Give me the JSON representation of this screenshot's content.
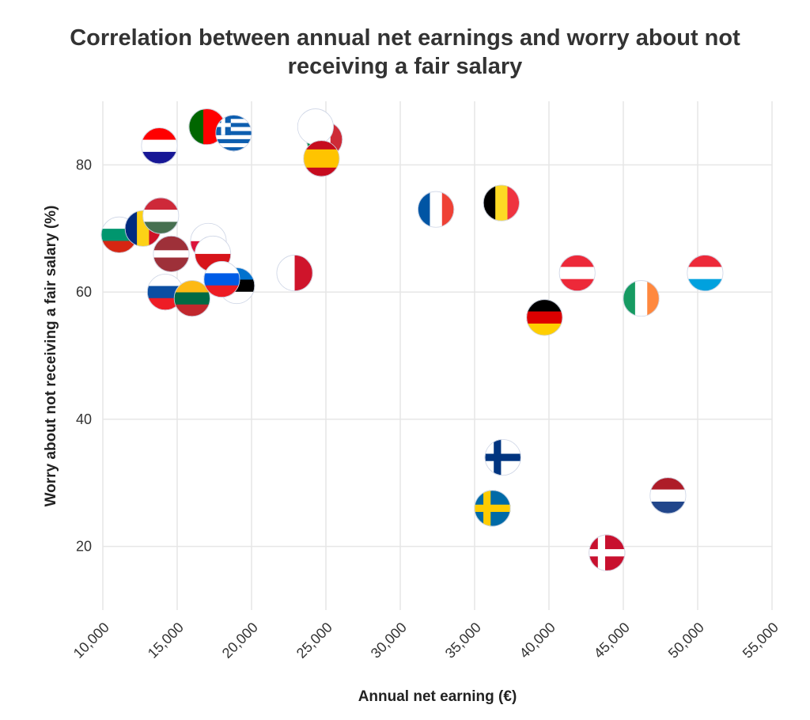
{
  "chart_data": {
    "type": "scatter",
    "title_lines": [
      "Correlation between annual net earnings and worry about not",
      "receiving a fair salary"
    ],
    "xlabel": "Annual net earning (€)",
    "ylabel": "Worry about not receiving a fair salary (%)",
    "xlim": [
      10000,
      55000
    ],
    "ylim": [
      10,
      90
    ],
    "xticks": [
      10000,
      15000,
      20000,
      25000,
      30000,
      35000,
      40000,
      45000,
      50000,
      55000
    ],
    "xtick_labels": [
      "10,000",
      "15,000",
      "20,000",
      "25,000",
      "30,000",
      "35,000",
      "40,000",
      "45,000",
      "50,000",
      "55,000"
    ],
    "yticks": [
      20,
      40,
      60,
      80
    ],
    "ytick_labels": [
      "20",
      "40",
      "60",
      "80"
    ],
    "grid": true,
    "marker": "country flag",
    "points": [
      {
        "country": "Bulgaria",
        "flag": {
          "type": "h",
          "colors": [
            "#ffffff",
            "#00966e",
            "#d62612"
          ]
        },
        "x": 11100,
        "y": 69
      },
      {
        "country": "Romania",
        "flag": {
          "type": "v",
          "colors": [
            "#002b7f",
            "#fcd116",
            "#ce1126"
          ]
        },
        "x": 12700,
        "y": 70
      },
      {
        "country": "Hungary",
        "flag": {
          "type": "h",
          "colors": [
            "#ce2939",
            "#ffffff",
            "#477050"
          ]
        },
        "x": 13900,
        "y": 72
      },
      {
        "country": "Croatia",
        "flag": {
          "type": "h",
          "colors": [
            "#ff0000",
            "#ffffff",
            "#171796"
          ]
        },
        "x": 13800,
        "y": 83
      },
      {
        "country": "Latvia",
        "flag": {
          "type": "h",
          "colors": [
            "#9e3039",
            "#ffffff",
            "#9e3039"
          ],
          "weights": [
            2,
            1,
            2
          ]
        },
        "x": 14600,
        "y": 66
      },
      {
        "country": "Slovakia",
        "flag": {
          "type": "h",
          "colors": [
            "#ffffff",
            "#0b4ea2",
            "#ee1c25"
          ]
        },
        "x": 14200,
        "y": 60
      },
      {
        "country": "Lithuania",
        "flag": {
          "type": "h",
          "colors": [
            "#fdb913",
            "#006a44",
            "#c1272d"
          ]
        },
        "x": 16000,
        "y": 59
      },
      {
        "country": "Portugal",
        "flag": {
          "type": "v",
          "colors": [
            "#006600",
            "#ff0000"
          ],
          "weights": [
            2,
            3
          ]
        },
        "x": 17000,
        "y": 86
      },
      {
        "country": "Poland",
        "flag": {
          "type": "h",
          "colors": [
            "#ffffff",
            "#dc143c"
          ]
        },
        "x": 17100,
        "y": 68
      },
      {
        "country": "Czechia",
        "flag": {
          "type": "h",
          "colors": [
            "#ffffff",
            "#d7141a"
          ]
        },
        "x": 17400,
        "y": 66
      },
      {
        "country": "Estonia",
        "flag": {
          "type": "h",
          "colors": [
            "#0072ce",
            "#000000",
            "#ffffff"
          ]
        },
        "x": 19000,
        "y": 61
      },
      {
        "country": "Slovenia",
        "flag": {
          "type": "h",
          "colors": [
            "#ffffff",
            "#005ce6",
            "#ed1c24"
          ]
        },
        "x": 18000,
        "y": 62
      },
      {
        "country": "Greece",
        "flag": {
          "type": "stripes",
          "colors": [
            "#0d5eaf",
            "#ffffff"
          ],
          "count": 9
        },
        "x": 18800,
        "y": 85
      },
      {
        "country": "Malta",
        "flag": {
          "type": "v",
          "colors": [
            "#ffffff",
            "#cf142b"
          ]
        },
        "x": 22900,
        "y": 63
      },
      {
        "country": "Italy",
        "flag": {
          "type": "v",
          "colors": [
            "#009246",
            "#ffffff",
            "#ce2b37"
          ]
        },
        "x": 24900,
        "y": 84
      },
      {
        "country": "Cyprus",
        "flag": {
          "type": "v",
          "colors": [
            "#ffffff"
          ]
        },
        "x": 24300,
        "y": 86
      },
      {
        "country": "Spain",
        "flag": {
          "type": "h",
          "colors": [
            "#c60b1e",
            "#ffc400",
            "#c60b1e"
          ],
          "weights": [
            1,
            2,
            1
          ]
        },
        "x": 24700,
        "y": 81
      },
      {
        "country": "France",
        "flag": {
          "type": "v",
          "colors": [
            "#0055a4",
            "#ffffff",
            "#ef4135"
          ]
        },
        "x": 32400,
        "y": 73
      },
      {
        "country": "Belgium",
        "flag": {
          "type": "v",
          "colors": [
            "#000000",
            "#fdda24",
            "#ef3340"
          ]
        },
        "x": 36800,
        "y": 74
      },
      {
        "country": "Finland",
        "flag": {
          "type": "cross",
          "colors": [
            "#ffffff",
            "#003580"
          ]
        },
        "x": 36900,
        "y": 34
      },
      {
        "country": "Sweden",
        "flag": {
          "type": "cross",
          "colors": [
            "#006aa7",
            "#fecc00"
          ]
        },
        "x": 36200,
        "y": 26
      },
      {
        "country": "Germany",
        "flag": {
          "type": "h",
          "colors": [
            "#000000",
            "#dd0000",
            "#ffce00"
          ]
        },
        "x": 39700,
        "y": 56
      },
      {
        "country": "Austria",
        "flag": {
          "type": "h",
          "colors": [
            "#ed2939",
            "#ffffff",
            "#ed2939"
          ]
        },
        "x": 41900,
        "y": 63
      },
      {
        "country": "Denmark",
        "flag": {
          "type": "cross",
          "colors": [
            "#c8102e",
            "#ffffff"
          ]
        },
        "x": 43900,
        "y": 19
      },
      {
        "country": "Ireland",
        "flag": {
          "type": "v",
          "colors": [
            "#169b62",
            "#ffffff",
            "#ff883e"
          ]
        },
        "x": 46200,
        "y": 59
      },
      {
        "country": "Netherlands",
        "flag": {
          "type": "h",
          "colors": [
            "#ae1c28",
            "#ffffff",
            "#21468b"
          ]
        },
        "x": 48000,
        "y": 28
      },
      {
        "country": "Luxembourg",
        "flag": {
          "type": "h",
          "colors": [
            "#ed2939",
            "#ffffff",
            "#00a1de"
          ]
        },
        "x": 50500,
        "y": 63
      }
    ]
  }
}
